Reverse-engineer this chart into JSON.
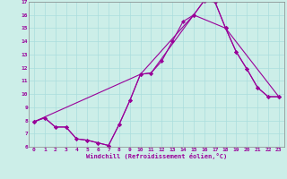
{
  "xlabel": "Windchill (Refroidissement éolien,°C)",
  "bg_color": "#cceee8",
  "grid_color": "#aadddd",
  "line_color": "#990099",
  "spine_color": "#888888",
  "xlim": [
    -0.5,
    23.5
  ],
  "ylim": [
    6,
    17
  ],
  "xticks": [
    0,
    1,
    2,
    3,
    4,
    5,
    6,
    7,
    8,
    9,
    10,
    11,
    12,
    13,
    14,
    15,
    16,
    17,
    18,
    19,
    20,
    21,
    22,
    23
  ],
  "yticks": [
    6,
    7,
    8,
    9,
    10,
    11,
    12,
    13,
    14,
    15,
    16,
    17
  ],
  "line1_x": [
    0,
    1,
    2,
    3,
    4,
    5,
    6,
    7,
    8,
    9,
    10,
    11,
    12,
    13,
    14,
    15,
    16,
    17,
    18,
    19,
    20,
    21,
    22,
    23
  ],
  "line1_y": [
    7.9,
    8.2,
    7.5,
    7.5,
    6.6,
    6.5,
    6.3,
    6.1,
    7.7,
    9.5,
    11.5,
    11.6,
    12.5,
    14.0,
    15.5,
    16.0,
    17.1,
    17.0,
    15.0,
    13.2,
    11.9,
    10.5,
    9.8,
    9.8
  ],
  "line2_x": [
    0,
    1,
    2,
    3,
    4,
    5,
    6,
    7,
    8,
    9,
    10,
    11,
    15,
    16,
    17,
    18,
    19,
    20,
    21,
    22,
    23
  ],
  "line2_y": [
    7.9,
    8.2,
    7.5,
    7.5,
    6.6,
    6.5,
    6.3,
    6.1,
    7.7,
    9.5,
    11.5,
    11.6,
    16.0,
    17.1,
    17.0,
    15.0,
    13.2,
    11.9,
    10.5,
    9.8,
    9.8
  ],
  "line3_x": [
    0,
    10,
    15,
    18,
    23
  ],
  "line3_y": [
    7.9,
    11.5,
    16.0,
    15.0,
    9.8
  ]
}
